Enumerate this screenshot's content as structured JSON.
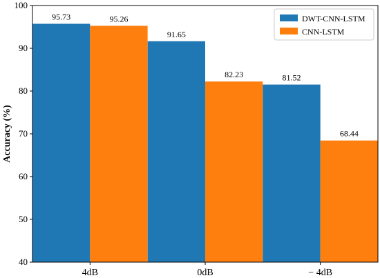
{
  "chart_data": {
    "type": "bar",
    "categories": [
      "4dB",
      "0dB",
      "− 4dB"
    ],
    "series": [
      {
        "name": "DWT-CNN-LSTM",
        "values": [
          95.73,
          91.65,
          81.52
        ],
        "color": "#1f77b4"
      },
      {
        "name": "CNN-LSTM",
        "values": [
          95.26,
          82.23,
          68.44
        ],
        "color": "#ff7f0e"
      }
    ],
    "data_labels": [
      [
        "95.73",
        "91.65",
        "81.52"
      ],
      [
        "95.26",
        "82.23",
        "68.44"
      ]
    ],
    "title": "",
    "xlabel": "",
    "ylabel": "Accuracy (%)",
    "ylim": [
      40,
      100
    ],
    "yticks": [
      40,
      50,
      60,
      70,
      80,
      90,
      100
    ],
    "ytick_labels": [
      "40",
      "50",
      "60",
      "70",
      "80",
      "90",
      "100"
    ],
    "grid": false,
    "legend_position": "top-right"
  }
}
